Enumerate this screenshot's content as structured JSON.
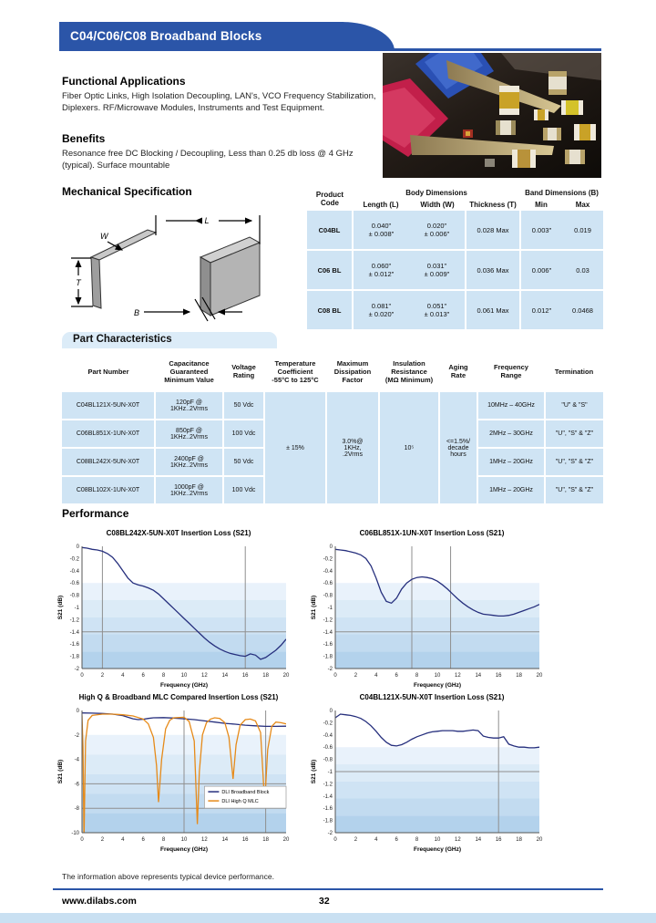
{
  "colors": {
    "accent_blue": "#2b55a8",
    "table_blue": "#cfe4f4",
    "series_navy": "#262f7d",
    "series_orange": "#e68a19"
  },
  "page": {
    "banner_title": "C04/C06/C08 Broadband Blocks",
    "note": "The information above represents typical device performance.",
    "footer": {
      "url": "www.dilabs.com",
      "page_number": "32"
    }
  },
  "intro": {
    "applications_heading": "Functional Applications",
    "applications_text": "Fiber Optic Links, High Isolation Decoupling, LAN's, VCO Frequency Stabilization, Diplexers. RF/Microwave Modules, Instruments and Test Equipment.",
    "benefits_heading": "Benefits",
    "benefits_text": "Resonance free DC Blocking / Decoupling, Less than 0.25 db loss @ 4 GHz (typical). Surface mountable"
  },
  "mechanical": {
    "heading": "Mechanical Specification",
    "diagram_labels": {
      "w": "W",
      "l": "L",
      "t": "T",
      "b": "B"
    },
    "table": {
      "col_product": "Product\nCode",
      "group_body": "Body Dimensions",
      "group_band": "Band Dimensions (B)",
      "cols": [
        "Length (L)",
        "Width (W)",
        "Thickness (T)",
        "Min",
        "Max"
      ],
      "rows": [
        {
          "code": "C04BL",
          "length": "0.040\"\n± 0.008\"",
          "width": "0.020\"\n± 0.006\"",
          "thickness": "0.028  Max",
          "min": "0.003\"",
          "max": "0.019"
        },
        {
          "code": "C06 BL",
          "length": "0.060\"\n± 0.012\"",
          "width": "0.031\"\n± 0.009\"",
          "thickness": "0.036  Max",
          "min": "0.006\"",
          "max": "0.03"
        },
        {
          "code": "C08 BL",
          "length": "0.081\"\n± 0.020\"",
          "width": "0.051\"\n± 0.013\"",
          "thickness": "0.061  Max",
          "min": "0.012\"",
          "max": "0.0468"
        }
      ]
    }
  },
  "part_characteristics": {
    "heading": "Part Characteristics",
    "table": {
      "headers": [
        "Part Number",
        "Capacitance\nGuaranteed\nMinimum Value",
        "Voltage\nRating",
        "Temperature\nCoefficient\n-55°C to 125°C",
        "Maximum\nDissipation\nFactor",
        "Insulation\nResistance\n(MΩ Minimum)",
        "Aging\nRate",
        "Frequency\nRange",
        "Termination"
      ],
      "shared": {
        "temp_coeff": "± 15%",
        "dissipation": "3.0%@\n1KHz,\n.2Vrms",
        "insulation": "10⁵",
        "aging": "<=1.5%/\ndecade\nhours"
      },
      "rows": [
        {
          "part": "C04BL121X-5UN-X0T",
          "cap": "120pF @\n1KHz..2Vrms",
          "volt": "50 Vdc",
          "freq": "10MHz – 40GHz",
          "term": "\"U\" & \"S\""
        },
        {
          "part": "C06BL851X-1UN-X0T",
          "cap": "850pF @\n1KHz..2Vrms",
          "volt": "100 Vdc",
          "freq": "2MHz – 30GHz",
          "term": "\"U\", \"S\" & \"Z\""
        },
        {
          "part": "C08BL242X-5UN-X0T",
          "cap": "2400pF @\n1KHz..2Vrms",
          "volt": "50 Vdc",
          "freq": "1MHz – 20GHz",
          "term": "\"U\", \"S\" & \"Z\""
        },
        {
          "part": "C08BL102X-1UN-X0T",
          "cap": "1000pF @\n1KHz..2Vrms",
          "volt": "100 Vdc",
          "freq": "1MHz – 20GHz",
          "term": "\"U\", \"S\" & \"Z\""
        }
      ]
    }
  },
  "performance": {
    "heading": "Performance"
  },
  "chart_data": [
    {
      "type": "line",
      "title": "C08BL242X-5UN-X0T Insertion Loss (S21)",
      "xlabel": "Frequency (GHz)",
      "ylabel": "S21 (dB)",
      "xlim": [
        0,
        20
      ],
      "ylim": [
        -2,
        0
      ],
      "xticks": [
        0,
        2,
        4,
        6,
        8,
        10,
        12,
        14,
        16,
        18,
        20
      ],
      "yticks": [
        0,
        -0.2,
        -0.4,
        -0.6,
        -0.8,
        -1,
        -1.2,
        -1.4,
        -1.6,
        -1.8,
        -2
      ],
      "band_start": -0.6,
      "markers": {
        "vlines": [
          2,
          16
        ],
        "hlines": [
          -1.4
        ]
      },
      "series": [
        {
          "name": "S21",
          "color": "#262f7d",
          "x": [
            0,
            0.5,
            1,
            1.5,
            2,
            2.5,
            3,
            3.5,
            4,
            4.5,
            5,
            5.5,
            6,
            6.5,
            7,
            7.5,
            8,
            8.5,
            9,
            9.5,
            10,
            10.5,
            11,
            11.5,
            12,
            12.5,
            13,
            13.5,
            14,
            14.5,
            15,
            15.5,
            16,
            16.5,
            17,
            17.5,
            18,
            18.5,
            19,
            19.5,
            20
          ],
          "y": [
            -0.02,
            -0.03,
            -0.05,
            -0.06,
            -0.08,
            -0.12,
            -0.18,
            -0.28,
            -0.4,
            -0.52,
            -0.6,
            -0.63,
            -0.65,
            -0.68,
            -0.72,
            -0.78,
            -0.86,
            -0.94,
            -1.02,
            -1.1,
            -1.18,
            -1.26,
            -1.34,
            -1.42,
            -1.5,
            -1.57,
            -1.63,
            -1.68,
            -1.72,
            -1.75,
            -1.77,
            -1.79,
            -1.8,
            -1.76,
            -1.78,
            -1.85,
            -1.82,
            -1.76,
            -1.7,
            -1.62,
            -1.52
          ]
        }
      ]
    },
    {
      "type": "line",
      "title": "C06BL851X-1UN-X0T Insertion Loss (S21)",
      "xlabel": "Frequency (GHz)",
      "ylabel": "S21 (dB)",
      "xlim": [
        0,
        20
      ],
      "ylim": [
        -2,
        0
      ],
      "xticks": [
        0,
        2,
        4,
        6,
        8,
        10,
        12,
        14,
        16,
        18,
        20
      ],
      "yticks": [
        0,
        -0.2,
        -0.4,
        -0.6,
        -0.8,
        -1,
        -1.2,
        -1.4,
        -1.6,
        -1.8,
        -2
      ],
      "band_start": -0.6,
      "markers": {
        "vlines": [
          7.5,
          11.3
        ],
        "hlines": [
          -1.4
        ]
      },
      "series": [
        {
          "name": "S21",
          "color": "#262f7d",
          "x": [
            0,
            0.5,
            1,
            1.5,
            2,
            2.5,
            3,
            3.5,
            4,
            4.5,
            5,
            5.5,
            6,
            6.5,
            7,
            7.5,
            8,
            8.5,
            9,
            9.5,
            10,
            10.5,
            11,
            11.5,
            12,
            12.5,
            13,
            13.5,
            14,
            14.5,
            15,
            15.5,
            16,
            16.5,
            17,
            17.5,
            18,
            18.5,
            19,
            19.5,
            20
          ],
          "y": [
            -0.05,
            -0.06,
            -0.07,
            -0.09,
            -0.11,
            -0.14,
            -0.2,
            -0.32,
            -0.52,
            -0.75,
            -0.9,
            -0.93,
            -0.85,
            -0.7,
            -0.6,
            -0.54,
            -0.51,
            -0.5,
            -0.51,
            -0.53,
            -0.57,
            -0.63,
            -0.7,
            -0.78,
            -0.86,
            -0.93,
            -0.99,
            -1.04,
            -1.08,
            -1.11,
            -1.12,
            -1.13,
            -1.14,
            -1.14,
            -1.13,
            -1.11,
            -1.08,
            -1.05,
            -1.02,
            -0.99,
            -0.95
          ]
        }
      ]
    },
    {
      "type": "line",
      "title": "High Q & Broadband MLC Compared Insertion Loss (S21)",
      "xlabel": "Frequency (GHz)",
      "ylabel": "S21 (dB)",
      "xlim": [
        0,
        20
      ],
      "ylim": [
        -10,
        0
      ],
      "xticks": [
        0,
        2,
        4,
        6,
        8,
        10,
        12,
        14,
        16,
        18,
        20
      ],
      "yticks": [
        0,
        -2,
        -4,
        -6,
        -8,
        -10
      ],
      "band_start": -2,
      "markers": {
        "vlines": [
          10,
          18
        ],
        "hlines": [
          -6,
          -8
        ]
      },
      "legend": true,
      "series": [
        {
          "name": "DLI Broadband Block",
          "color": "#262f7d",
          "x": [
            0,
            1,
            2,
            3,
            4,
            4.5,
            5,
            5.5,
            6,
            6.5,
            7,
            8,
            9,
            10,
            11,
            12,
            13,
            14,
            15,
            16,
            17,
            18,
            19,
            20
          ],
          "y": [
            -0.2,
            -0.22,
            -0.25,
            -0.3,
            -0.42,
            -0.55,
            -0.68,
            -0.75,
            -0.72,
            -0.65,
            -0.6,
            -0.58,
            -0.62,
            -0.68,
            -0.75,
            -0.85,
            -0.95,
            -1.05,
            -1.12,
            -1.2,
            -1.25,
            -1.3,
            -1.3,
            -1.28
          ]
        },
        {
          "name": "DLI High Q MLC",
          "color": "#e68a19",
          "x": [
            0,
            0.1,
            0.2,
            0.35,
            0.6,
            1,
            2,
            3,
            4,
            5,
            6,
            6.5,
            7,
            7.3,
            7.5,
            7.8,
            8.2,
            8.6,
            9,
            10,
            10.5,
            11,
            11.3,
            11.5,
            11.8,
            12.2,
            12.6,
            13,
            13.5,
            14,
            14.4,
            14.8,
            15.1,
            15.5,
            16,
            16.5,
            17,
            17.5,
            17.9,
            18.2,
            18.6,
            19,
            19.5,
            20
          ],
          "y": [
            -0.4,
            -3,
            -10.5,
            -2.5,
            -0.8,
            -0.4,
            -0.3,
            -0.3,
            -0.35,
            -0.45,
            -0.7,
            -1.1,
            -2.2,
            -4.5,
            -7.5,
            -4,
            -1.5,
            -0.8,
            -0.6,
            -0.55,
            -0.9,
            -2.5,
            -9.3,
            -5,
            -2,
            -1,
            -0.7,
            -0.6,
            -0.65,
            -1.0,
            -2.2,
            -5.6,
            -2.8,
            -1.2,
            -0.75,
            -0.7,
            -0.85,
            -1.8,
            -7.6,
            -3.2,
            -1.3,
            -0.95,
            -1.0,
            -1.1
          ]
        }
      ]
    },
    {
      "type": "line",
      "title": "C04BL121X-5UN-X0T Insertion Loss (S21)",
      "xlabel": "Frequency (GHz)",
      "ylabel": "S21 (dB)",
      "xlim": [
        0,
        20
      ],
      "ylim": [
        -2,
        0
      ],
      "xticks": [
        0,
        2,
        4,
        6,
        8,
        10,
        12,
        14,
        16,
        18,
        20
      ],
      "yticks": [
        0,
        -0.2,
        -0.4,
        -0.6,
        -0.8,
        -1,
        -1.2,
        -1.4,
        -1.6,
        -1.8,
        -2
      ],
      "band_start": -0.6,
      "markers": {
        "vlines": [
          16
        ],
        "hlines": [
          -1
        ]
      },
      "series": [
        {
          "name": "S21",
          "color": "#262f7d",
          "x": [
            0,
            0.5,
            1,
            1.5,
            2,
            2.5,
            3,
            3.5,
            4,
            4.5,
            5,
            5.5,
            6,
            6.5,
            7,
            7.5,
            8,
            8.5,
            9,
            9.5,
            10,
            10.5,
            11,
            11.5,
            12,
            12.5,
            13,
            13.5,
            14,
            14.5,
            15,
            15.5,
            16,
            16.5,
            17,
            17.5,
            18,
            18.5,
            19,
            19.5,
            20
          ],
          "y": [
            -0.12,
            -0.06,
            -0.07,
            -0.08,
            -0.1,
            -0.13,
            -0.18,
            -0.25,
            -0.34,
            -0.44,
            -0.52,
            -0.57,
            -0.58,
            -0.56,
            -0.52,
            -0.47,
            -0.43,
            -0.4,
            -0.37,
            -0.35,
            -0.34,
            -0.33,
            -0.33,
            -0.33,
            -0.34,
            -0.34,
            -0.33,
            -0.32,
            -0.33,
            -0.42,
            -0.44,
            -0.45,
            -0.45,
            -0.43,
            -0.55,
            -0.58,
            -0.6,
            -0.6,
            -0.61,
            -0.61,
            -0.6
          ]
        }
      ]
    }
  ]
}
